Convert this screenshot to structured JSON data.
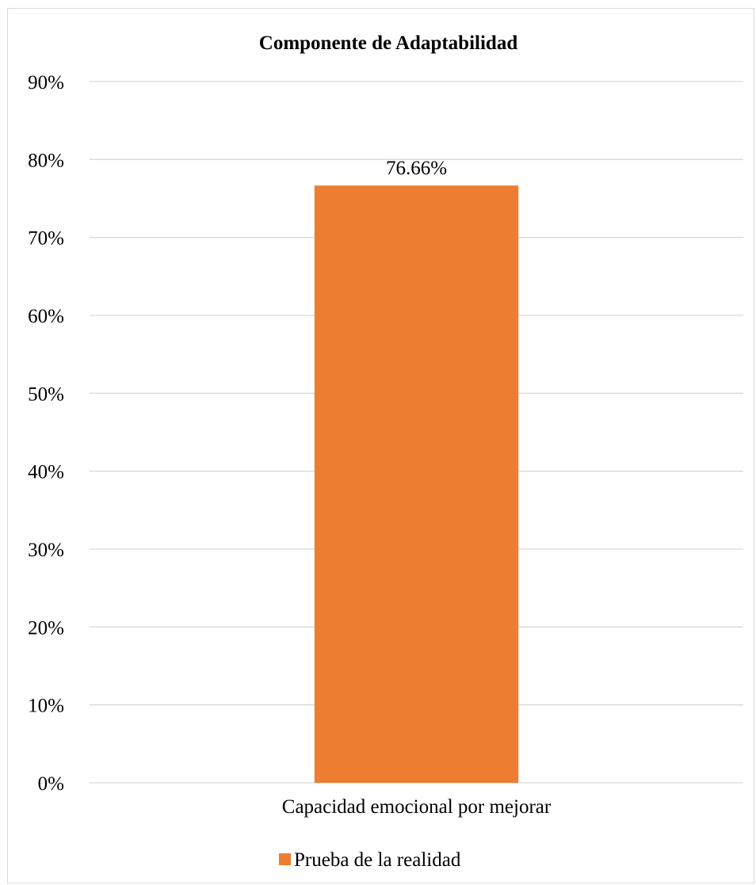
{
  "chart_data": {
    "type": "bar",
    "title": "Componente  de Adaptabilidad",
    "categories": [
      "Capacidad emocional  por mejorar"
    ],
    "series": [
      {
        "name": "Prueba de la realidad",
        "values": [
          76.66
        ],
        "color": "#ED7D31"
      }
    ],
    "data_labels": [
      "76.66%"
    ],
    "ylim": [
      0,
      90
    ],
    "yticks": [
      0,
      10,
      20,
      30,
      40,
      50,
      60,
      70,
      80,
      90
    ],
    "ytick_labels": [
      "0%",
      "10%",
      "20%",
      "30%",
      "40%",
      "50%",
      "60%",
      "70%",
      "80%",
      "90%"
    ],
    "grid": true,
    "gridline_color": "#d9d9d9",
    "legend_position": "bottom"
  }
}
